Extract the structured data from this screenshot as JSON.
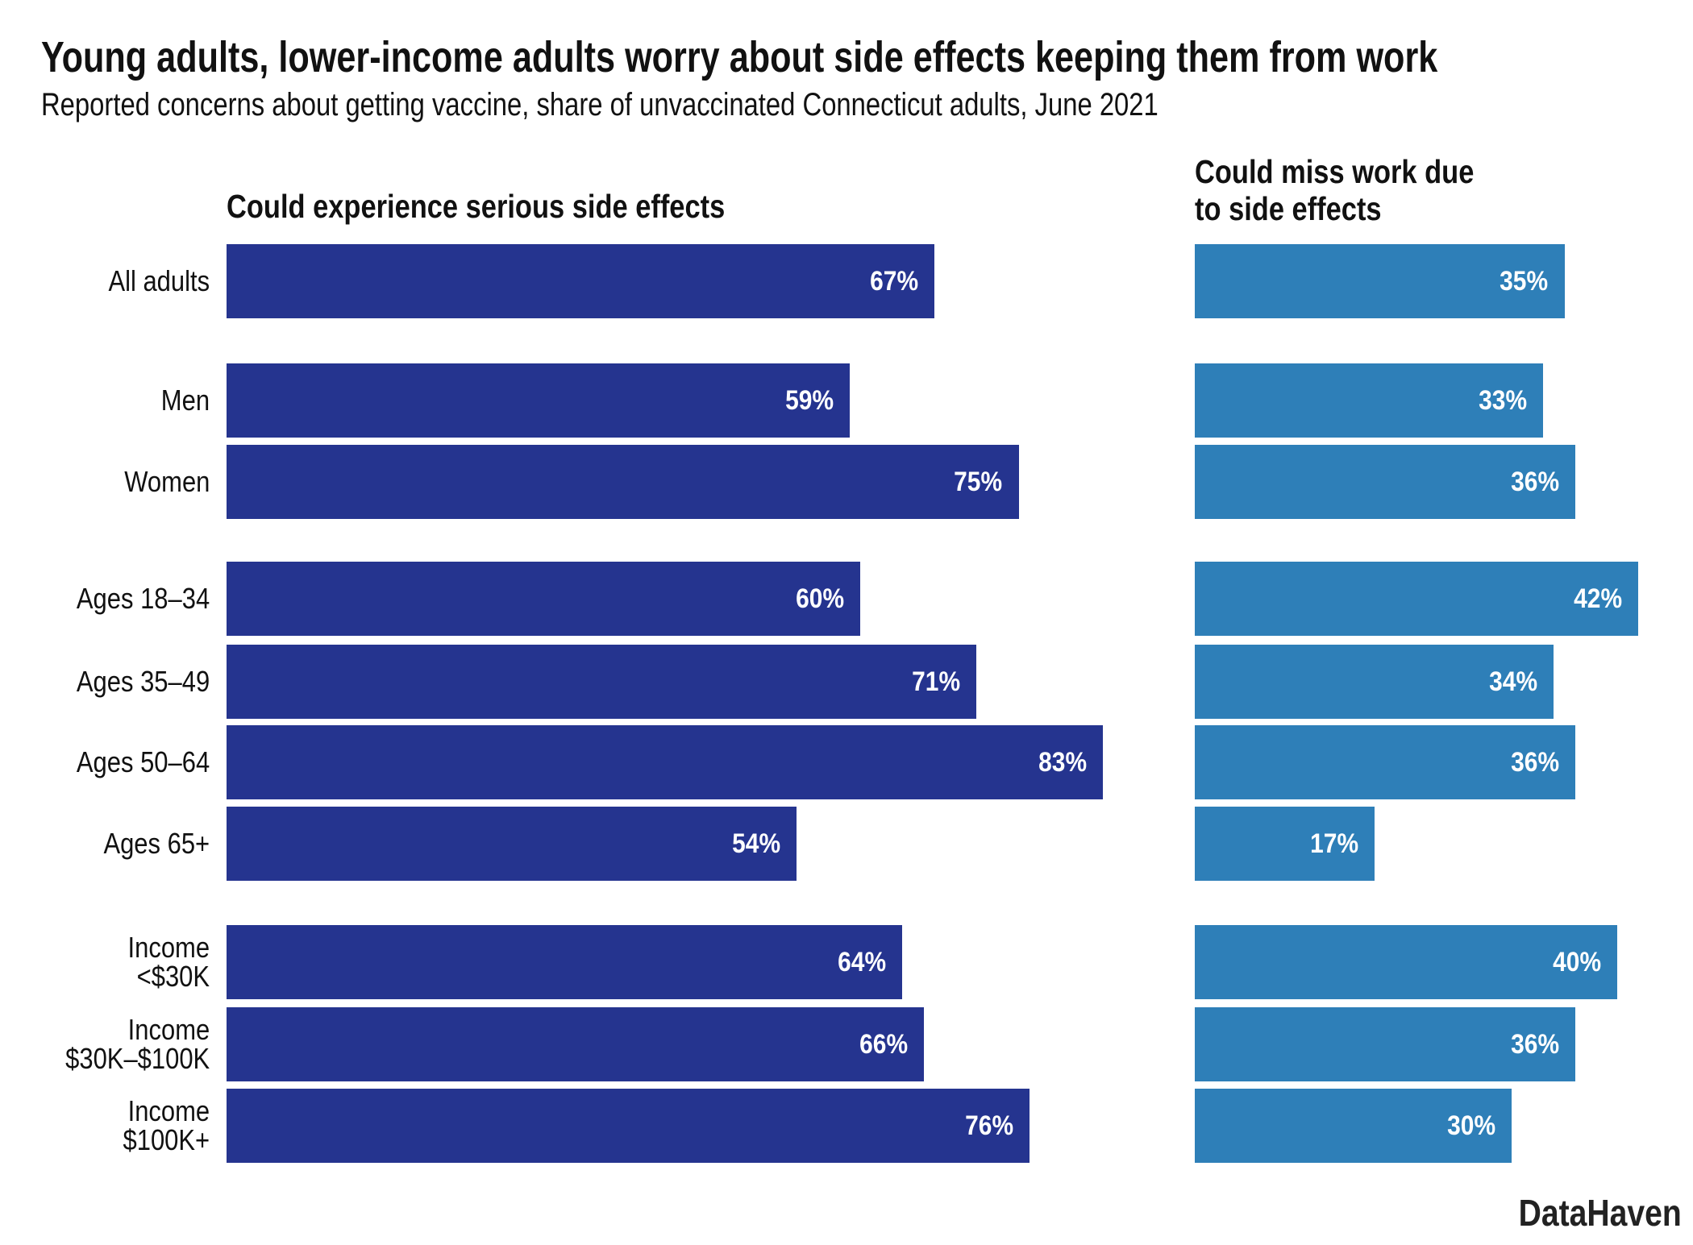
{
  "chart_data": {
    "type": "bar",
    "orientation": "horizontal",
    "title": "Young adults, lower-income adults worry about side effects keeping them from work",
    "subtitle": "Reported concerns about getting vaccine, share of unvaccinated Connecticut adults, June 2021",
    "categories": [
      "All adults",
      "Men",
      "Women",
      "Ages 18–34",
      "Ages 35–49",
      "Ages 50–64",
      "Ages 65+",
      "Income\n<$30K",
      "Income\n$30K–$100K",
      "Income\n$100K+"
    ],
    "groups": [
      0,
      1,
      1,
      2,
      2,
      2,
      2,
      3,
      3,
      3
    ],
    "series": [
      {
        "name": "Could experience serious side effects",
        "values": [
          67,
          59,
          75,
          60,
          71,
          83,
          54,
          64,
          66,
          76
        ],
        "color": "#25348f"
      },
      {
        "name": "Could miss work due to side effects",
        "values": [
          35,
          33,
          36,
          42,
          34,
          36,
          17,
          40,
          36,
          30
        ],
        "color": "#2e7fb8"
      }
    ],
    "value_format": "{v}%",
    "xlim": [
      0,
      100
    ],
    "grid": false,
    "axes_visible": false
  },
  "source_logo": "DataHaven"
}
